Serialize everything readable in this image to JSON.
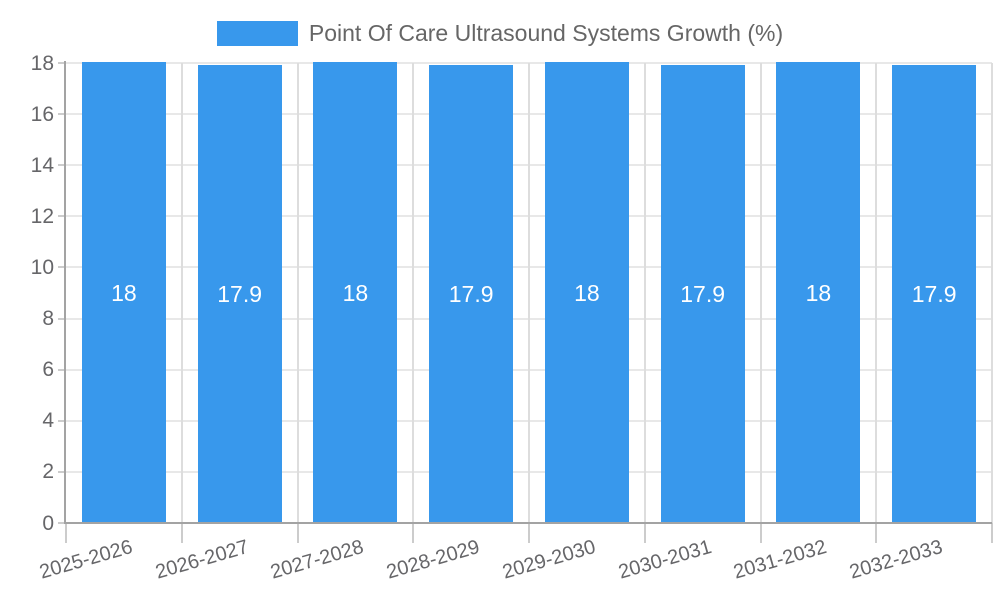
{
  "chart_data": {
    "type": "bar",
    "title": "Point Of Care Ultrasound Systems Growth (%)",
    "categories": [
      "2025-2026",
      "2026-2027",
      "2027-2028",
      "2028-2029",
      "2029-2030",
      "2030-2031",
      "2031-2032",
      "2032-2033"
    ],
    "values": [
      18,
      17.9,
      18,
      17.9,
      18,
      17.9,
      18,
      17.9
    ],
    "value_labels": [
      "18",
      "17.9",
      "18",
      "17.9",
      "18",
      "17.9",
      "18",
      "17.9"
    ],
    "xlabel": "",
    "ylabel": "",
    "ylim": [
      0,
      18
    ],
    "yticks": [
      0,
      2,
      4,
      6,
      8,
      10,
      12,
      14,
      16,
      18
    ],
    "grid": true,
    "legend_position": "top-center",
    "colors": {
      "bar": "#3898ec",
      "bar_value_text": "#ffffff",
      "axis_text": "#666669",
      "grid_h": "#e8e8e8",
      "grid_v": "#dddddd",
      "axis_line": "#a3a3a3",
      "tick": "#cccccc"
    }
  }
}
